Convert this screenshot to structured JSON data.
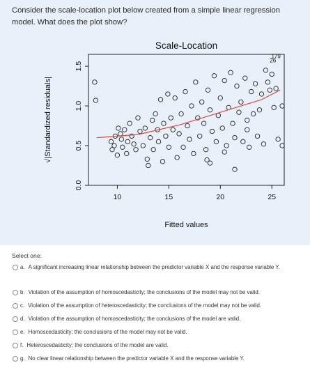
{
  "question": {
    "text": "Consider the scale-location plot below created from a simple linear regression model. What does the plot show?"
  },
  "chart_data": {
    "type": "scatter",
    "title": "Scale-Location",
    "xlabel": "Fitted values",
    "ylabel": "√|Standardized residuals|",
    "xlim": [
      7.2,
      26.2
    ],
    "ylim": [
      0,
      1.65
    ],
    "xticks": [
      10,
      15,
      20,
      25
    ],
    "yticks": [
      0.0,
      0.5,
      1.0,
      1.5
    ],
    "x_tick_labels": [
      "10",
      "15",
      "20",
      "25"
    ],
    "y_tick_labels": [
      "0.0",
      "0.5",
      "1.0",
      "1.5"
    ],
    "grid": false,
    "annotations": [
      {
        "text": "179",
        "x": 25.4,
        "y": 1.6
      },
      {
        "text": "26",
        "x": 25.1,
        "y": 1.55
      }
    ],
    "smooth_line_color": "#e04a3a",
    "points": [
      [
        7.8,
        1.3
      ],
      [
        7.9,
        1.07
      ],
      [
        9.4,
        0.55
      ],
      [
        9.5,
        0.45
      ],
      [
        9.7,
        0.5
      ],
      [
        9.8,
        0.62
      ],
      [
        10.0,
        0.38
      ],
      [
        10.1,
        0.72
      ],
      [
        10.3,
        0.65
      ],
      [
        10.4,
        0.58
      ],
      [
        10.5,
        0.48
      ],
      [
        10.7,
        0.7
      ],
      [
        10.9,
        0.4
      ],
      [
        11.0,
        0.55
      ],
      [
        11.2,
        0.78
      ],
      [
        11.4,
        0.62
      ],
      [
        11.6,
        0.52
      ],
      [
        11.8,
        0.45
      ],
      [
        12.0,
        0.85
      ],
      [
        12.2,
        0.68
      ],
      [
        12.5,
        0.5
      ],
      [
        12.7,
        0.72
      ],
      [
        12.9,
        0.33
      ],
      [
        13.0,
        0.25
      ],
      [
        13.2,
        0.6
      ],
      [
        13.4,
        0.82
      ],
      [
        13.5,
        0.45
      ],
      [
        13.7,
        0.9
      ],
      [
        13.9,
        0.7
      ],
      [
        14.0,
        0.55
      ],
      [
        14.2,
        1.08
      ],
      [
        14.4,
        0.3
      ],
      [
        14.5,
        0.78
      ],
      [
        14.7,
        0.62
      ],
      [
        14.9,
        1.15
      ],
      [
        15.0,
        0.48
      ],
      [
        15.2,
        0.85
      ],
      [
        15.4,
        0.7
      ],
      [
        15.6,
        1.1
      ],
      [
        15.8,
        0.35
      ],
      [
        16.0,
        0.65
      ],
      [
        16.2,
        0.9
      ],
      [
        16.4,
        0.48
      ],
      [
        16.6,
        1.18
      ],
      [
        16.8,
        0.75
      ],
      [
        17.0,
        0.58
      ],
      [
        17.2,
        1.0
      ],
      [
        17.4,
        0.4
      ],
      [
        17.6,
        1.3
      ],
      [
        17.8,
        0.85
      ],
      [
        18.0,
        0.62
      ],
      [
        18.2,
        1.05
      ],
      [
        18.4,
        0.78
      ],
      [
        18.6,
        0.45
      ],
      [
        18.8,
        1.2
      ],
      [
        19.0,
        0.95
      ],
      [
        19.2,
        0.68
      ],
      [
        19.4,
        1.38
      ],
      [
        19.6,
        0.55
      ],
      [
        19.8,
        0.88
      ],
      [
        20.0,
        1.1
      ],
      [
        20.2,
        0.72
      ],
      [
        20.4,
        1.32
      ],
      [
        20.6,
        0.5
      ],
      [
        20.8,
        0.98
      ],
      [
        21.0,
        1.42
      ],
      [
        21.2,
        0.78
      ],
      [
        21.4,
        0.6
      ],
      [
        21.6,
        1.25
      ],
      [
        21.8,
        0.92
      ],
      [
        22.0,
        1.05
      ],
      [
        22.2,
        0.55
      ],
      [
        22.4,
        1.35
      ],
      [
        22.6,
        0.82
      ],
      [
        22.8,
        0.48
      ],
      [
        23.0,
        1.18
      ],
      [
        23.2,
        0.9
      ],
      [
        23.4,
        1.28
      ],
      [
        23.6,
        0.62
      ],
      [
        23.8,
        0.95
      ],
      [
        24.0,
        1.15
      ],
      [
        24.2,
        0.52
      ],
      [
        24.4,
        1.45
      ],
      [
        24.6,
        1.3
      ],
      [
        24.8,
        1.2
      ],
      [
        25.0,
        1.4
      ],
      [
        25.2,
        0.98
      ],
      [
        25.4,
        1.22
      ],
      [
        25.6,
        0.58
      ],
      [
        26.0,
        1.0
      ],
      [
        26.0,
        0.5
      ],
      [
        19.0,
        0.28
      ],
      [
        18.7,
        0.32
      ],
      [
        20.4,
        0.42
      ],
      [
        21.4,
        0.2
      ],
      [
        22.6,
        0.7
      ]
    ],
    "smooth_line": [
      [
        8.0,
        0.6
      ],
      [
        12.0,
        0.64
      ],
      [
        16.0,
        0.76
      ],
      [
        20.0,
        0.92
      ],
      [
        24.0,
        1.08
      ],
      [
        25.8,
        1.2
      ]
    ]
  },
  "answers": {
    "select_label": "Select one:",
    "options": [
      {
        "letter": "a.",
        "text": "A significant increasing linear relationship between the predictor variable X and the response variable Y."
      },
      {
        "letter": "b.",
        "text": "Violation of the assumption of homoscedasticity; the conclusions of the model may not be valid."
      },
      {
        "letter": "c.",
        "text": "Violation of the assumption of heteroscedasticity; the conclusions of the model may not be valid."
      },
      {
        "letter": "d.",
        "text": "Violation of the assumption of homoscedasticity; the conclusions of the model are valid."
      },
      {
        "letter": "e.",
        "text": "Homoscedasticity; the conclusions of the model may not be valid."
      },
      {
        "letter": "f.",
        "text": "Heteroscedasticity; the conclusions of the model are valid."
      },
      {
        "letter": "g.",
        "text": "No clear linear relationship between the predictor variable X and the response variable Y."
      }
    ]
  }
}
